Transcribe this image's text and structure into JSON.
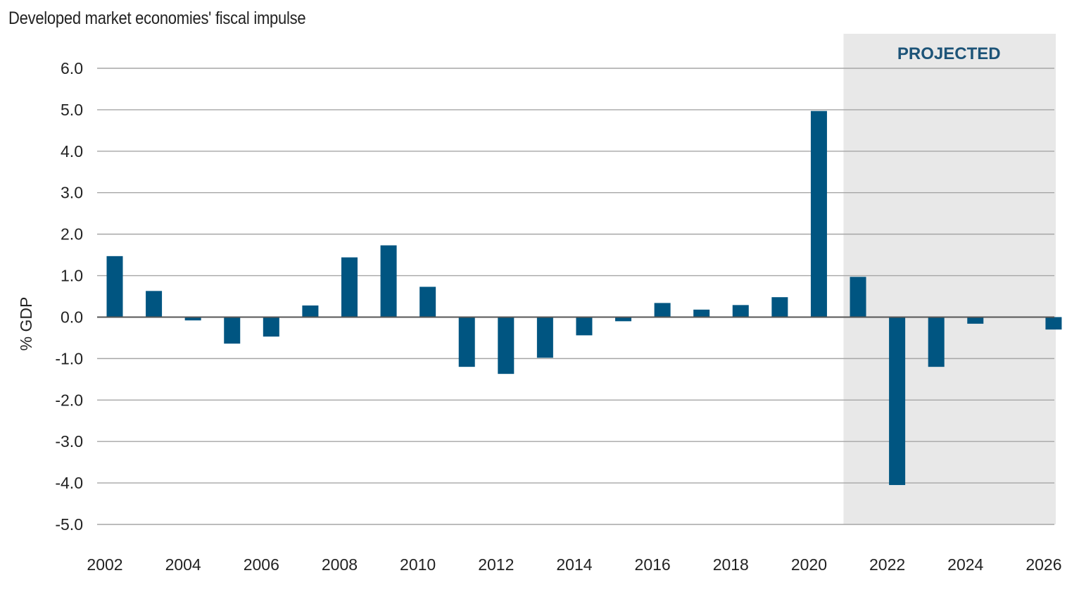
{
  "chart_data": {
    "type": "bar",
    "title": "Developed market economies' fiscal impulse",
    "ylabel": "% GDP",
    "xlabel": "",
    "ylim": [
      -5.0,
      6.0
    ],
    "yticks": [
      "6.0",
      "5.0",
      "4.0",
      "3.0",
      "2.0",
      "1.0",
      "0.0",
      "-1.0",
      "-2.0",
      "-3.0",
      "-4.0",
      "-5.0"
    ],
    "xticks": [
      "2002",
      "2004",
      "2006",
      "2008",
      "2010",
      "2012",
      "2014",
      "2016",
      "2018",
      "2020",
      "2022",
      "2024",
      "2026"
    ],
    "categories": [
      "2002",
      "2003",
      "2004",
      "2005",
      "2006",
      "2007",
      "2008",
      "2009",
      "2010",
      "2011",
      "2012",
      "2013",
      "2014",
      "2015",
      "2016",
      "2017",
      "2018",
      "2019",
      "2020",
      "2021",
      "2022",
      "2023",
      "2024",
      "2025",
      "2026"
    ],
    "values": [
      1.47,
      0.63,
      -0.08,
      -0.64,
      -0.47,
      0.28,
      1.44,
      1.73,
      0.73,
      -1.2,
      -1.37,
      -0.98,
      -0.44,
      -0.1,
      0.34,
      0.18,
      0.29,
      0.48,
      4.97,
      0.97,
      -4.05,
      -1.2,
      -0.16,
      0.0,
      -0.3
    ],
    "grid": true,
    "bar_color": "#005581",
    "projected": {
      "label": "PROJECTED",
      "from_year": "2021",
      "shade_color": "#e8e8e8",
      "label_color": "#1d5478"
    }
  }
}
